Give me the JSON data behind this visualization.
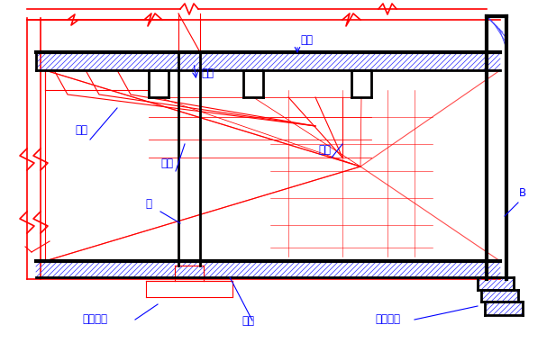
{
  "title": "",
  "bg_color": "#ffffff",
  "red": "#FF0000",
  "black": "#000000",
  "blue": "#0000FF",
  "dark_blue": "#000080",
  "hatch_blue": "#4444FF",
  "labels": {
    "主梁_top": "主梁",
    "楼板": "楼板",
    "次梁_left": "次梁",
    "主梁_left": "主梁",
    "次梁_right": "次梁",
    "柱": "柱",
    "独立基础": "独立基础",
    "地面": "地面",
    "条形基础": "条形基础",
    "B": "B"
  }
}
